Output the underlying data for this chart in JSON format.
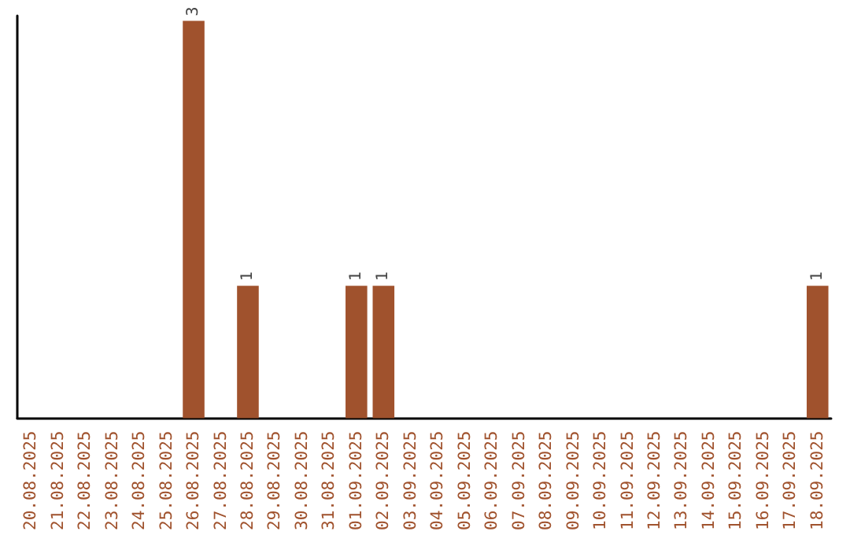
{
  "chart_data": {
    "type": "bar",
    "categories": [
      "20.08.2025",
      "21.08.2025",
      "22.08.2025",
      "23.08.2025",
      "24.08.2025",
      "25.08.2025",
      "26.08.2025",
      "27.08.2025",
      "28.08.2025",
      "29.08.2025",
      "30.08.2025",
      "31.08.2025",
      "01.09.2025",
      "02.09.2025",
      "03.09.2025",
      "04.09.2025",
      "05.09.2025",
      "06.09.2025",
      "07.09.2025",
      "08.09.2025",
      "09.09.2025",
      "10.09.2025",
      "11.09.2025",
      "12.09.2025",
      "13.09.2025",
      "14.09.2025",
      "15.09.2025",
      "16.09.2025",
      "17.09.2025",
      "18.09.2025"
    ],
    "values": [
      0,
      0,
      0,
      0,
      0,
      0,
      3,
      0,
      1,
      0,
      0,
      0,
      1,
      1,
      0,
      0,
      0,
      0,
      0,
      0,
      0,
      0,
      0,
      0,
      0,
      0,
      0,
      0,
      0,
      1
    ],
    "value_labels": [
      null,
      null,
      null,
      null,
      null,
      null,
      "3",
      null,
      "1",
      null,
      null,
      null,
      "1",
      "1",
      null,
      null,
      null,
      null,
      null,
      null,
      null,
      null,
      null,
      null,
      null,
      null,
      null,
      null,
      null,
      "1"
    ],
    "color": "#a0522d",
    "tick_labels": "x"
  }
}
